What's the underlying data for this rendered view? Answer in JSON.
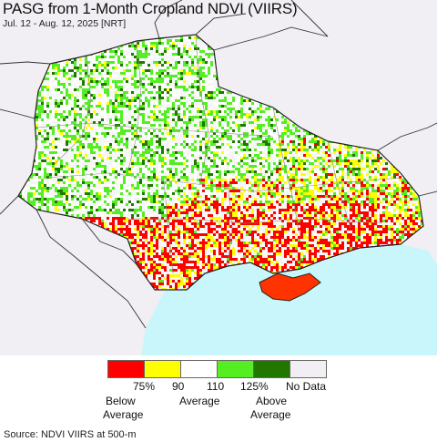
{
  "map": {
    "title": "PASG from 1-Month Cropland NDVI (VIIRS)",
    "subtitle": "Jul. 12 - Aug. 12, 2025 [NRT]",
    "colors": {
      "background_land": "#f1eff3",
      "sea": "#c9f6fb",
      "border": "#222222",
      "sub_border": "#9a9a9a"
    }
  },
  "legend": {
    "items": [
      {
        "color": "#ff0000",
        "meaning": "below"
      },
      {
        "color": "#ffff00",
        "meaning": "below"
      },
      {
        "color": "#ffffff",
        "meaning": "average"
      },
      {
        "color": "#55ee22",
        "meaning": "above"
      },
      {
        "color": "#227700",
        "meaning": "above"
      },
      {
        "color": "#f1eff3",
        "meaning": "no-data"
      }
    ],
    "tick_75": "75%",
    "tick_90": "90",
    "tick_110": "110",
    "tick_125": "125%",
    "no_data": "No Data",
    "below_1": "Below",
    "below_2": "Average",
    "average": "Average",
    "above_1": "Above",
    "above_2": "Average"
  },
  "source": "Source: NDVI VIIRS at 500-m"
}
